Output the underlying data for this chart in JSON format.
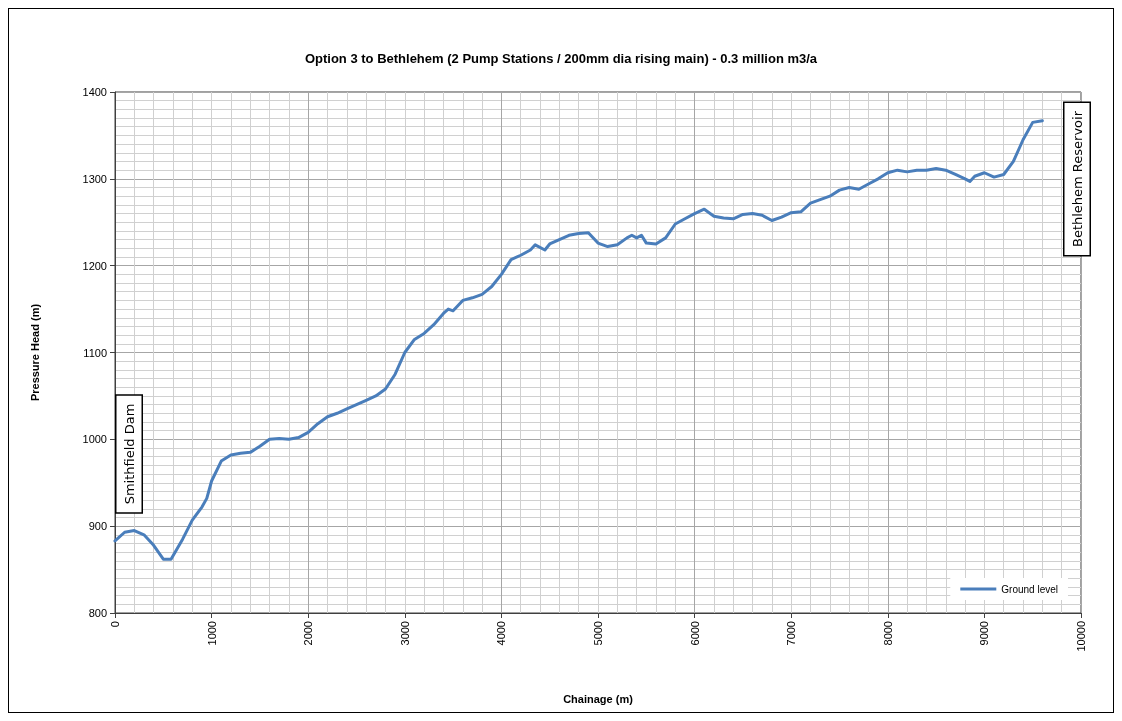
{
  "chart_data": {
    "type": "line",
    "title": "Option 3 to Bethlehem (2 Pump Stations / 200mm dia rising main) - 0.3 million m3/a",
    "xlabel": "Chainage (m)",
    "ylabel": "Pressure Head (m)",
    "x": [
      0,
      100,
      200,
      300,
      400,
      500,
      580,
      700,
      800,
      900,
      950,
      1000,
      1100,
      1200,
      1300,
      1400,
      1500,
      1600,
      1700,
      1800,
      1900,
      2000,
      2100,
      2200,
      2300,
      2400,
      2500,
      2600,
      2700,
      2800,
      2900,
      3000,
      3100,
      3200,
      3300,
      3400,
      3450,
      3500,
      3600,
      3700,
      3800,
      3900,
      4000,
      4100,
      4200,
      4300,
      4350,
      4450,
      4500,
      4600,
      4700,
      4800,
      4900,
      5000,
      5100,
      5200,
      5300,
      5350,
      5400,
      5450,
      5500,
      5600,
      5700,
      5800,
      5900,
      6000,
      6100,
      6200,
      6300,
      6400,
      6500,
      6600,
      6700,
      6800,
      6900,
      7000,
      7100,
      7200,
      7300,
      7400,
      7500,
      7600,
      7700,
      7800,
      7900,
      8000,
      8100,
      8200,
      8300,
      8400,
      8500,
      8600,
      8700,
      8800,
      8850,
      8900,
      9000,
      9100,
      9200,
      9300,
      9400,
      9500,
      9600
    ],
    "series": [
      {
        "name": "Ground level",
        "color": "#4a7ebb",
        "values": [
          883,
          893,
          895,
          890,
          878,
          862,
          862,
          885,
          907,
          922,
          932,
          952,
          975,
          982,
          984,
          985,
          992,
          1000,
          1001,
          1000,
          1002,
          1008,
          1018,
          1026,
          1030,
          1035,
          1040,
          1045,
          1050,
          1058,
          1075,
          1100,
          1115,
          1122,
          1132,
          1145,
          1150,
          1148,
          1160,
          1163,
          1167,
          1176,
          1190,
          1207,
          1212,
          1218,
          1224,
          1218,
          1225,
          1230,
          1235,
          1237,
          1238,
          1226,
          1222,
          1224,
          1232,
          1235,
          1232,
          1235,
          1226,
          1225,
          1232,
          1248,
          1254,
          1260,
          1265,
          1257,
          1255,
          1254,
          1259,
          1260,
          1258,
          1252,
          1256,
          1261,
          1262,
          1272,
          1276,
          1280,
          1287,
          1290,
          1288,
          1294,
          1300,
          1307,
          1310,
          1308,
          1310,
          1310,
          1312,
          1310,
          1305,
          1300,
          1297,
          1303,
          1307,
          1302,
          1305,
          1320,
          1345,
          1365,
          1367
        ]
      }
    ],
    "xlim": [
      0,
      10000
    ],
    "xticks": [
      0,
      1000,
      2000,
      3000,
      4000,
      5000,
      6000,
      7000,
      8000,
      9000,
      10000
    ],
    "ylim": [
      800,
      1400
    ],
    "yticks": [
      800,
      900,
      1000,
      1100,
      1200,
      1300,
      1400
    ],
    "grid": true,
    "legend": "bottom right",
    "marker": "none",
    "line_style": "solid",
    "annotations": [
      "Smithfield Dam",
      "Bethlehem Reservoir"
    ]
  }
}
